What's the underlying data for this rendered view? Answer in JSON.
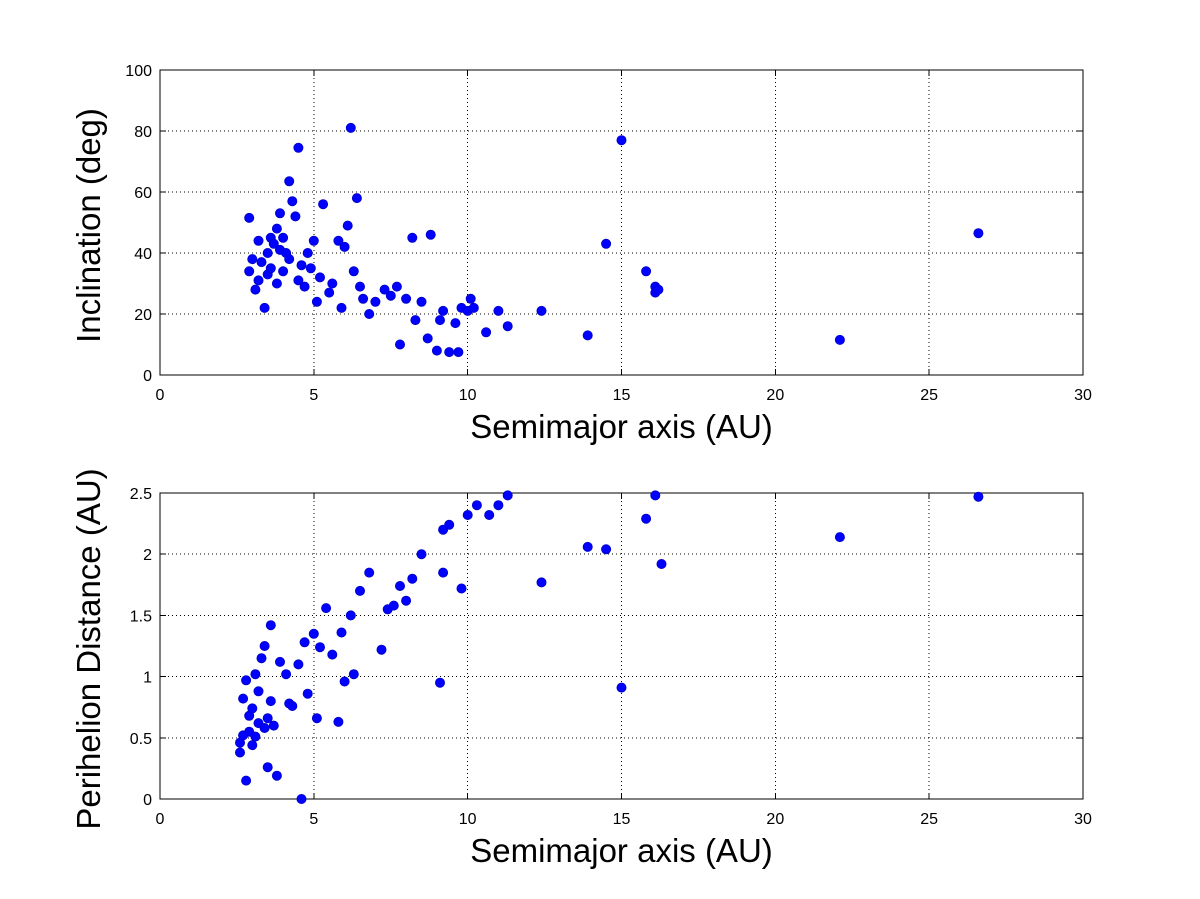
{
  "colors": {
    "marker": "#0000ff",
    "marker_edge": "#0000c8"
  },
  "chart_data": [
    {
      "type": "scatter",
      "title": "",
      "xlabel": "Semimajor axis (AU)",
      "ylabel": "Inclination (deg)",
      "xlim": [
        0,
        30
      ],
      "ylim": [
        0,
        100
      ],
      "xticks": [
        0,
        5,
        10,
        15,
        20,
        25,
        30
      ],
      "yticks": [
        0,
        20,
        40,
        60,
        80,
        100
      ],
      "xtick_labels": [
        "0",
        "5",
        "10",
        "15",
        "20",
        "25",
        "30"
      ],
      "ytick_labels": [
        "0",
        "20",
        "40",
        "60",
        "80",
        "100"
      ],
      "grid": true,
      "series": [
        {
          "points": [
            [
              2.9,
              51.5
            ],
            [
              2.9,
              34
            ],
            [
              3.0,
              38
            ],
            [
              3.1,
              28
            ],
            [
              3.2,
              44
            ],
            [
              3.2,
              31
            ],
            [
              3.3,
              37
            ],
            [
              3.4,
              22
            ],
            [
              3.5,
              40
            ],
            [
              3.5,
              33
            ],
            [
              3.6,
              45
            ],
            [
              3.6,
              35
            ],
            [
              3.7,
              43
            ],
            [
              3.8,
              48
            ],
            [
              3.8,
              30
            ],
            [
              3.9,
              41
            ],
            [
              3.9,
              53
            ],
            [
              4.0,
              34
            ],
            [
              4.0,
              45
            ],
            [
              4.1,
              40
            ],
            [
              4.2,
              63.5
            ],
            [
              4.2,
              38
            ],
            [
              4.3,
              57
            ],
            [
              4.4,
              52
            ],
            [
              4.5,
              31
            ],
            [
              4.5,
              74.5
            ],
            [
              4.6,
              36
            ],
            [
              4.7,
              29
            ],
            [
              4.8,
              40
            ],
            [
              4.9,
              35
            ],
            [
              5.0,
              44
            ],
            [
              5.1,
              24
            ],
            [
              5.2,
              32
            ],
            [
              5.3,
              56
            ],
            [
              5.5,
              27
            ],
            [
              5.6,
              30
            ],
            [
              5.8,
              44
            ],
            [
              5.9,
              22
            ],
            [
              6.0,
              42
            ],
            [
              6.1,
              49
            ],
            [
              6.2,
              81
            ],
            [
              6.3,
              34
            ],
            [
              6.4,
              58
            ],
            [
              6.5,
              29
            ],
            [
              6.6,
              25
            ],
            [
              6.8,
              20
            ],
            [
              7.0,
              24
            ],
            [
              7.3,
              28
            ],
            [
              7.5,
              26
            ],
            [
              7.7,
              29
            ],
            [
              7.8,
              10
            ],
            [
              8.0,
              25
            ],
            [
              8.2,
              45
            ],
            [
              8.3,
              18
            ],
            [
              8.5,
              24
            ],
            [
              8.7,
              12
            ],
            [
              8.8,
              46
            ],
            [
              9.0,
              8
            ],
            [
              9.1,
              18
            ],
            [
              9.2,
              21
            ],
            [
              9.4,
              7.5
            ],
            [
              9.6,
              17
            ],
            [
              9.7,
              7.5
            ],
            [
              9.8,
              22
            ],
            [
              10.0,
              21
            ],
            [
              10.1,
              25
            ],
            [
              10.2,
              22
            ],
            [
              10.6,
              14
            ],
            [
              11.0,
              21
            ],
            [
              11.3,
              16
            ],
            [
              12.4,
              21
            ],
            [
              13.9,
              13
            ],
            [
              14.5,
              43
            ],
            [
              15.0,
              77
            ],
            [
              15.8,
              34
            ],
            [
              16.1,
              29
            ],
            [
              16.1,
              27
            ],
            [
              16.2,
              28
            ],
            [
              22.1,
              11.5
            ],
            [
              26.6,
              46.5
            ]
          ]
        }
      ]
    },
    {
      "type": "scatter",
      "title": "",
      "xlabel": "Semimajor axis (AU)",
      "ylabel": "Perihelion Distance (AU)",
      "xlim": [
        0,
        30
      ],
      "ylim": [
        0,
        2.5
      ],
      "xticks": [
        0,
        5,
        10,
        15,
        20,
        25,
        30
      ],
      "yticks": [
        0,
        0.5,
        1,
        1.5,
        2,
        2.5
      ],
      "xtick_labels": [
        "0",
        "5",
        "10",
        "15",
        "20",
        "25",
        "30"
      ],
      "ytick_labels": [
        "0",
        "0.5",
        "1",
        "1.5",
        "2",
        "2.5"
      ],
      "grid": true,
      "series": [
        {
          "points": [
            [
              2.6,
              0.38
            ],
            [
              2.6,
              0.46
            ],
            [
              2.7,
              0.52
            ],
            [
              2.7,
              0.82
            ],
            [
              2.8,
              0.15
            ],
            [
              2.8,
              0.97
            ],
            [
              2.9,
              0.55
            ],
            [
              2.9,
              0.68
            ],
            [
              3.0,
              0.74
            ],
            [
              3.0,
              0.44
            ],
            [
              3.1,
              0.51
            ],
            [
              3.1,
              1.02
            ],
            [
              3.2,
              0.62
            ],
            [
              3.2,
              0.88
            ],
            [
              3.3,
              1.15
            ],
            [
              3.4,
              0.58
            ],
            [
              3.4,
              1.25
            ],
            [
              3.5,
              0.26
            ],
            [
              3.5,
              0.66
            ],
            [
              3.6,
              0.8
            ],
            [
              3.6,
              1.42
            ],
            [
              3.7,
              0.6
            ],
            [
              3.8,
              0.19
            ],
            [
              3.9,
              1.12
            ],
            [
              4.1,
              1.02
            ],
            [
              4.2,
              0.78
            ],
            [
              4.3,
              0.76
            ],
            [
              4.5,
              1.1
            ],
            [
              4.6,
              0.0
            ],
            [
              4.7,
              1.28
            ],
            [
              4.8,
              0.86
            ],
            [
              5.0,
              1.35
            ],
            [
              5.1,
              0.66
            ],
            [
              5.2,
              1.24
            ],
            [
              5.4,
              1.56
            ],
            [
              5.6,
              1.18
            ],
            [
              5.8,
              0.63
            ],
            [
              5.9,
              1.36
            ],
            [
              6.0,
              0.96
            ],
            [
              6.2,
              1.5
            ],
            [
              6.3,
              1.02
            ],
            [
              6.5,
              1.7
            ],
            [
              6.8,
              1.85
            ],
            [
              7.2,
              1.22
            ],
            [
              7.4,
              1.55
            ],
            [
              7.6,
              1.58
            ],
            [
              7.8,
              1.74
            ],
            [
              8.0,
              1.62
            ],
            [
              8.2,
              1.8
            ],
            [
              8.5,
              2.0
            ],
            [
              9.1,
              0.95
            ],
            [
              9.2,
              1.85
            ],
            [
              9.2,
              2.2
            ],
            [
              9.4,
              2.24
            ],
            [
              9.8,
              1.72
            ],
            [
              10.0,
              2.32
            ],
            [
              10.3,
              2.4
            ],
            [
              10.7,
              2.32
            ],
            [
              11.0,
              2.4
            ],
            [
              11.3,
              2.48
            ],
            [
              12.4,
              1.77
            ],
            [
              13.9,
              2.06
            ],
            [
              14.5,
              2.04
            ],
            [
              15.0,
              0.91
            ],
            [
              15.8,
              2.29
            ],
            [
              16.1,
              2.48
            ],
            [
              16.3,
              1.92
            ],
            [
              22.1,
              2.14
            ],
            [
              26.6,
              2.47
            ]
          ]
        }
      ]
    }
  ]
}
